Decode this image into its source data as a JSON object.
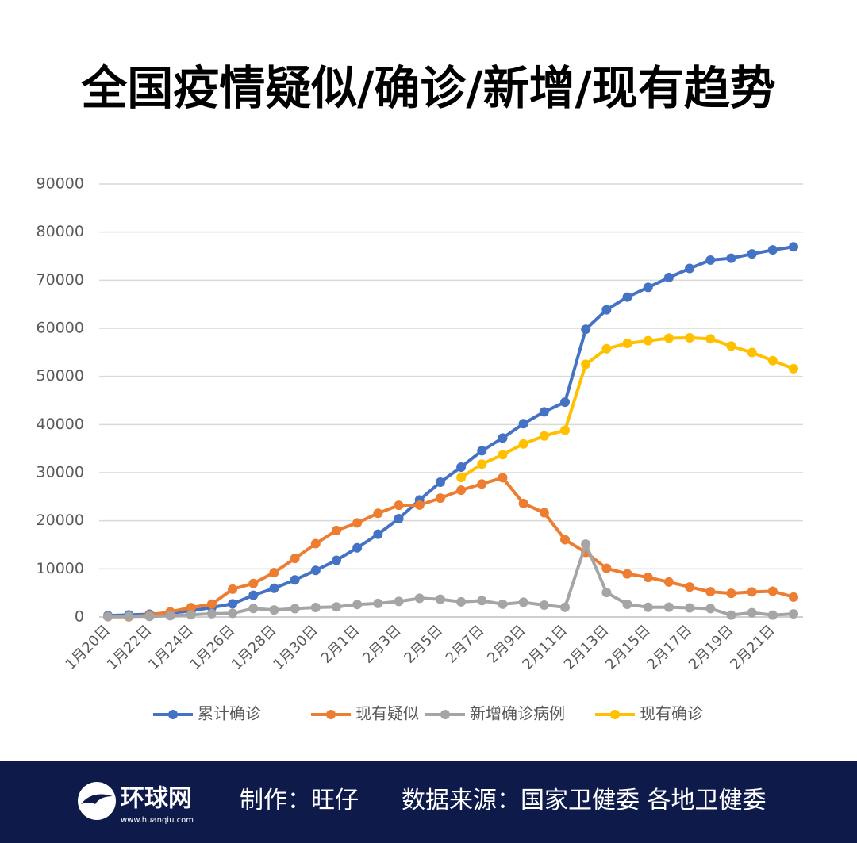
{
  "chart_data": {
    "type": "line",
    "title": "全国疫情疑似/确诊/新增/现有趋势",
    "categories": [
      "1月20日",
      null,
      "1月22日",
      null,
      "1月24日",
      null,
      "1月26日",
      null,
      "1月28日",
      null,
      "1月30日",
      null,
      "2月1日",
      null,
      "2月3日",
      null,
      "2月5日",
      null,
      "2月7日",
      null,
      "2月9日",
      null,
      "2月11日",
      null,
      "2月13日",
      null,
      "2月15日",
      null,
      "2月17日",
      null,
      "2月19日",
      null,
      "2月21日",
      null
    ],
    "series": [
      {
        "name": "累计确诊",
        "color": "#4472c4",
        "values": [
          291,
          440,
          571,
          830,
          1287,
          1975,
          2744,
          4515,
          5974,
          7711,
          9692,
          11791,
          14380,
          17205,
          20438,
          24324,
          28018,
          31161,
          34546,
          37198,
          40171,
          42638,
          44653,
          59804,
          63851,
          66492,
          68500,
          70548,
          72436,
          74185,
          74576,
          75465,
          76288,
          76936
        ]
      },
      {
        "name": "现有疑似",
        "color": "#ed7d31",
        "values": [
          54,
          37,
          393,
          1072,
          1965,
          2684,
          5794,
          6973,
          9239,
          12167,
          15238,
          17988,
          19544,
          21558,
          23214,
          23260,
          24702,
          26359,
          27657,
          28942,
          23589,
          21675,
          16067,
          13435,
          10109,
          8969,
          8228,
          7264,
          6242,
          5248,
          4922,
          5206,
          5365,
          4148
        ]
      },
      {
        "name": "新增确诊病例",
        "color": "#a5a5a5",
        "values": [
          77,
          149,
          131,
          259,
          444,
          688,
          769,
          1771,
          1459,
          1737,
          1982,
          2102,
          2590,
          2829,
          3235,
          3887,
          3694,
          3143,
          3399,
          2656,
          3062,
          2478,
          2015,
          15152,
          5090,
          2641,
          2009,
          2048,
          1886,
          1749,
          394,
          889,
          397,
          648
        ]
      },
      {
        "name": "现有确诊",
        "color": "#ffc000",
        "values": [
          null,
          null,
          null,
          null,
          null,
          null,
          null,
          null,
          null,
          null,
          null,
          null,
          null,
          null,
          null,
          null,
          null,
          28985,
          31774,
          33738,
          35982,
          37626,
          38800,
          52526,
          55748,
          56873,
          57416,
          57934,
          58016,
          57805,
          56303,
          54965,
          53284,
          51606
        ]
      }
    ],
    "ylim": [
      0,
      90000
    ],
    "yticks": [
      0,
      10000,
      20000,
      30000,
      40000,
      50000,
      60000,
      70000,
      80000,
      90000
    ],
    "grid": true,
    "legend": "bottom"
  },
  "footer": {
    "logo": "环球网",
    "logo_url": "www.huanqiu.com",
    "author": "制作：旺仔",
    "source": "数据来源：国家卫健委 各地卫健委"
  }
}
